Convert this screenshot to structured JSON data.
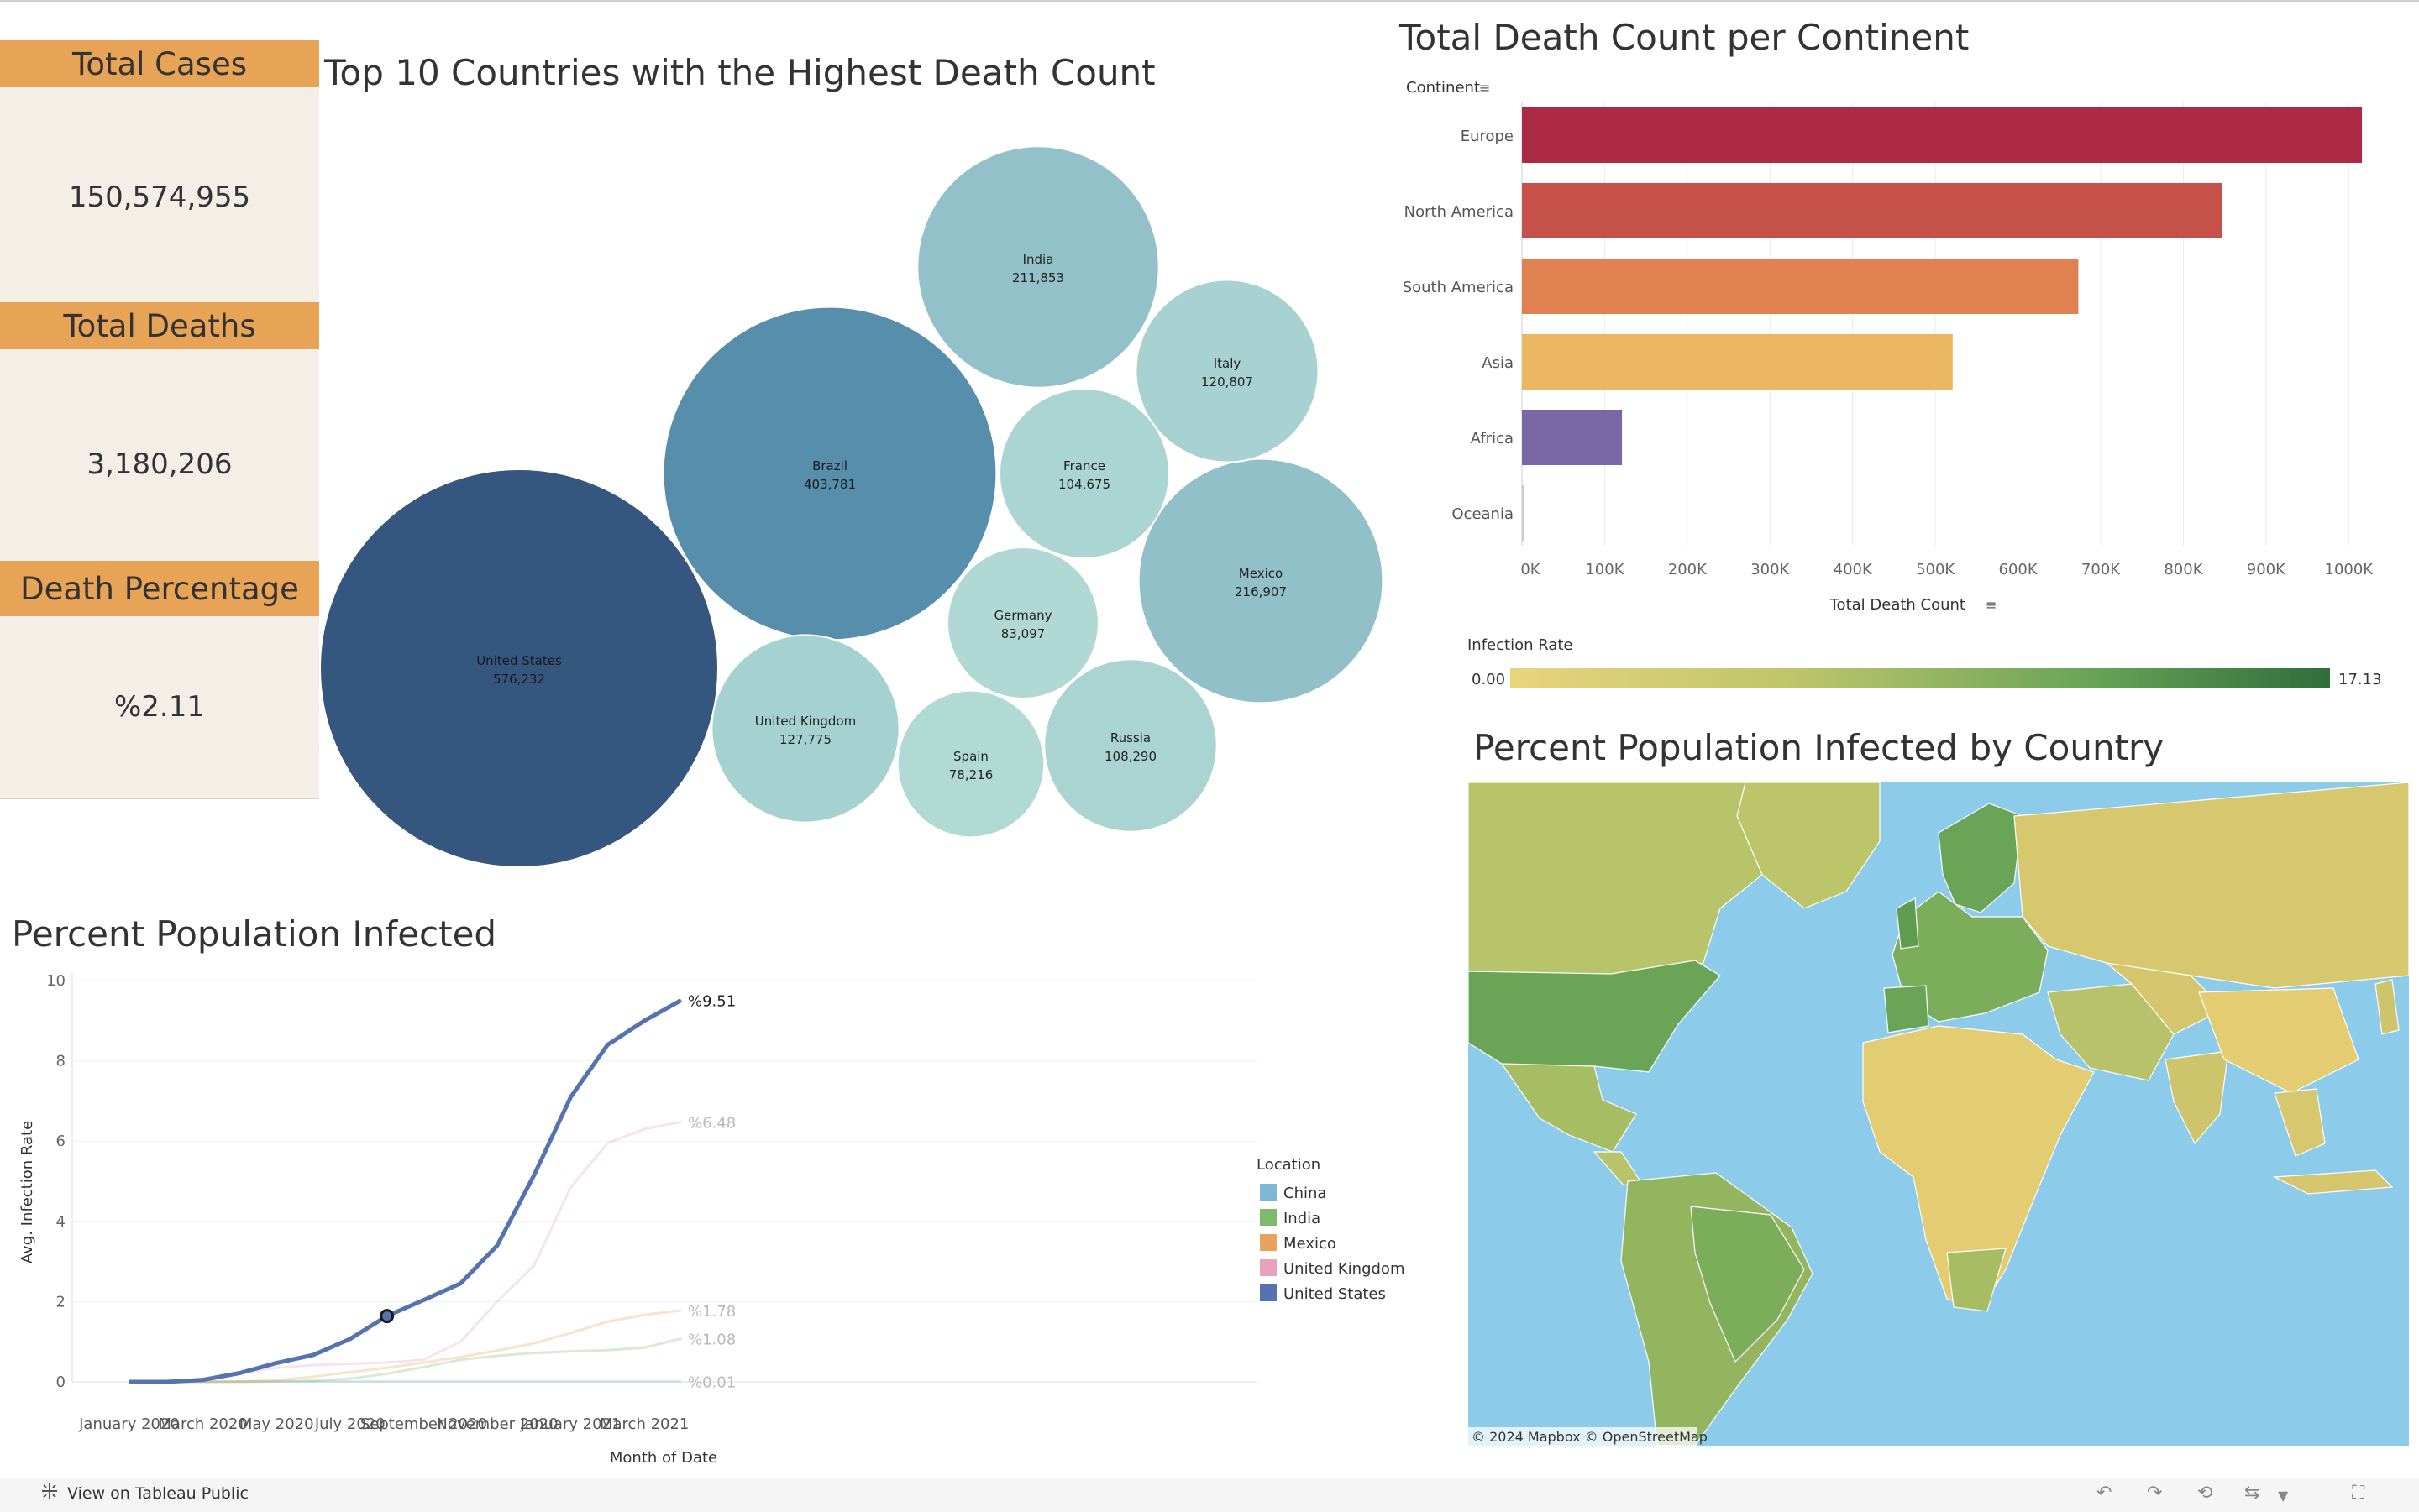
{
  "kpis": {
    "cases_label": "Total Cases",
    "cases_value": "150,574,955",
    "deaths_label": "Total Deaths",
    "deaths_value": "3,180,206",
    "pct_label": "Death Percentage",
    "pct_value": "%2.11"
  },
  "footer": {
    "view_label": "View on Tableau Public"
  },
  "colors": {
    "kpi_header": "#e8a456",
    "kpi_bg": "#f3efe7",
    "us_line": "#5673b0",
    "ocean": "#8ccbea"
  },
  "chart_data": [
    {
      "type": "bubble",
      "title": "Top 10 Countries with the Highest Death Count",
      "points": [
        {
          "label": "United States",
          "value": 576232,
          "text": "576,232"
        },
        {
          "label": "Brazil",
          "value": 403781,
          "text": "403,781"
        },
        {
          "label": "India",
          "value": 211853,
          "text": "211,853"
        },
        {
          "label": "Mexico",
          "value": 216907,
          "text": "216,907"
        },
        {
          "label": "United Kingdom",
          "value": 127775,
          "text": "127,775"
        },
        {
          "label": "Italy",
          "value": 120807,
          "text": "120,807"
        },
        {
          "label": "Russia",
          "value": 108290,
          "text": "108,290"
        },
        {
          "label": "France",
          "value": 104675,
          "text": "104,675"
        },
        {
          "label": "Germany",
          "value": 83097,
          "text": "83,097"
        },
        {
          "label": "Spain",
          "value": 78216,
          "text": "78,216"
        }
      ]
    },
    {
      "type": "bar",
      "orientation": "horizontal",
      "title": "Total Death Count per Continent",
      "categories_label": "Continent",
      "categories": [
        "Europe",
        "North America",
        "South America",
        "Asia",
        "Africa",
        "Oceania"
      ],
      "values": [
        1016000,
        847000,
        673000,
        521000,
        121000,
        1000
      ],
      "colors": [
        "#ad2a44",
        "#c65149",
        "#e0824f",
        "#ecb762",
        "#7a68a6",
        "#cccccc"
      ],
      "xlabel": "Total Death Count",
      "xticks": [
        "0K",
        "100K",
        "200K",
        "300K",
        "400K",
        "500K",
        "600K",
        "700K",
        "800K",
        "900K",
        "1000K"
      ],
      "xlim": [
        0,
        1020000
      ],
      "grid": true
    },
    {
      "type": "line",
      "title": "Percent Population Infected",
      "ylabel": "Avg. Infection Rate",
      "xlabel": "Month of Date",
      "ylim": [
        0,
        10
      ],
      "yticks": [
        "0",
        "2",
        "4",
        "6",
        "8",
        "10"
      ],
      "xticks": [
        "January 2020",
        "March 2020",
        "May 2020",
        "July 2020",
        "September 2020",
        "November 2020",
        "January 2021",
        "March 2021"
      ],
      "x": [
        "2020-01",
        "2020-02",
        "2020-03",
        "2020-04",
        "2020-05",
        "2020-06",
        "2020-07",
        "2020-08",
        "2020-09",
        "2020-10",
        "2020-11",
        "2020-12",
        "2021-01",
        "2021-02",
        "2021-03",
        "2021-04"
      ],
      "legend_title": "Location",
      "legend_position": "right",
      "series": [
        {
          "name": "China",
          "color": "#7fb8d4",
          "highlight": false,
          "end_label": "%0.01",
          "values": [
            0,
            0,
            0.01,
            0.01,
            0.01,
            0.01,
            0.01,
            0.01,
            0.01,
            0.01,
            0.01,
            0.01,
            0.01,
            0.01,
            0.01,
            0.01
          ]
        },
        {
          "name": "India",
          "color": "#7fb96b",
          "highlight": false,
          "end_label": "%1.08",
          "values": [
            0,
            0,
            0,
            0,
            0.01,
            0.03,
            0.08,
            0.2,
            0.37,
            0.55,
            0.65,
            0.72,
            0.76,
            0.79,
            0.85,
            1.08
          ]
        },
        {
          "name": "Mexico",
          "color": "#e8a35c",
          "highlight": false,
          "end_label": "%1.78",
          "values": [
            0,
            0,
            0,
            0.01,
            0.04,
            0.13,
            0.24,
            0.35,
            0.48,
            0.62,
            0.78,
            0.96,
            1.22,
            1.5,
            1.67,
            1.78
          ]
        },
        {
          "name": "United Kingdom",
          "color": "#e8a2bc",
          "highlight": false,
          "end_label": "%6.48",
          "values": [
            0,
            0,
            0.05,
            0.22,
            0.35,
            0.42,
            0.45,
            0.48,
            0.55,
            1.0,
            2.0,
            2.9,
            4.85,
            5.95,
            6.3,
            6.48
          ]
        },
        {
          "name": "United States",
          "color": "#5673b0",
          "highlight": true,
          "end_label": "%9.51",
          "values": [
            0,
            0,
            0.05,
            0.22,
            0.47,
            0.67,
            1.07,
            1.64,
            2.04,
            2.45,
            3.4,
            5.15,
            7.1,
            8.4,
            9.0,
            9.51
          ]
        }
      ]
    },
    {
      "type": "choropleth",
      "title": "Percent Population Infected by Country",
      "legend_title": "Infection Rate",
      "range": [
        0.0,
        17.13
      ],
      "range_labels": [
        "0.00",
        "17.13"
      ],
      "attribution": "© 2024 Mapbox  © OpenStreetMap"
    }
  ]
}
